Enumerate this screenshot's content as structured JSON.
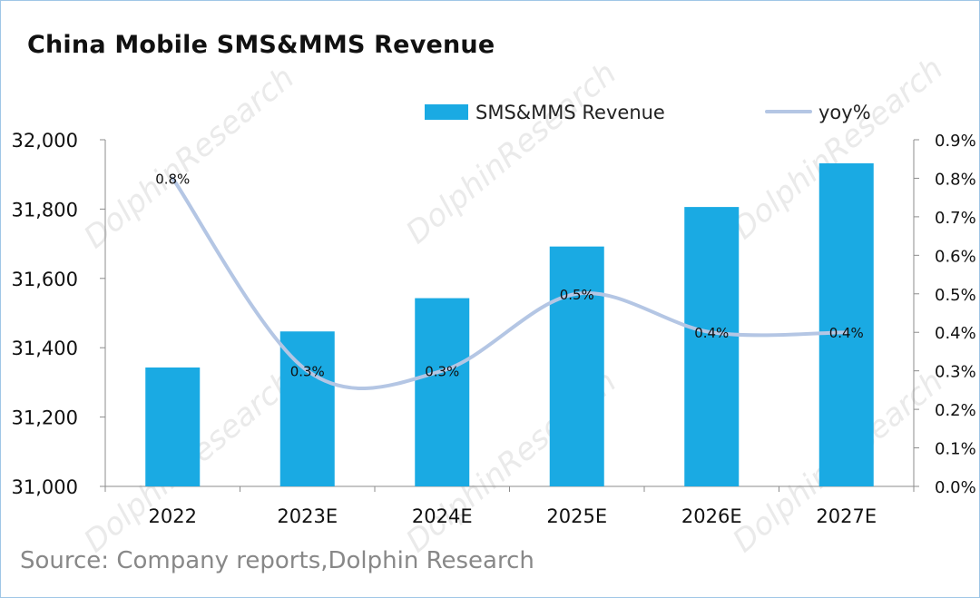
{
  "page": {
    "title": "China Mobile SMS&MMS Revenue",
    "source": "Source: Company reports,Dolphin Research"
  },
  "chart_data": {
    "type": "bar",
    "categories": [
      "2022",
      "2023E",
      "2024E",
      "2025E",
      "2026E",
      "2027E"
    ],
    "series": [
      {
        "name": "SMS&MMS Revenue",
        "type": "bar",
        "axis": "left",
        "color": "#1aaae3",
        "values": [
          31343,
          31447,
          31543,
          31692,
          31806,
          31932
        ]
      },
      {
        "name": "yoy%",
        "type": "line",
        "axis": "right",
        "color": "#b4c6e4",
        "values": [
          0.8,
          0.3,
          0.3,
          0.5,
          0.4,
          0.4
        ],
        "labels": [
          "0.8%",
          "0.3%",
          "0.3%",
          "0.5%",
          "0.4%",
          "0.4%"
        ]
      }
    ],
    "y_left": {
      "min": 31000,
      "max": 32000,
      "ticks": [
        31000,
        31200,
        31400,
        31600,
        31800,
        32000
      ],
      "tick_labels": [
        "31,000",
        "31,200",
        "31,400",
        "31,600",
        "31,800",
        "32,000"
      ]
    },
    "y_right": {
      "min": 0,
      "max": 0.9,
      "ticks": [
        0,
        0.1,
        0.2,
        0.3,
        0.4,
        0.5,
        0.6,
        0.7,
        0.8,
        0.9
      ],
      "tick_labels": [
        "0.0%",
        "0.1%",
        "0.2%",
        "0.3%",
        "0.4%",
        "0.5%",
        "0.6%",
        "0.7%",
        "0.8%",
        "0.9%"
      ]
    },
    "legend": {
      "placement": "top-right"
    },
    "grid": false
  }
}
